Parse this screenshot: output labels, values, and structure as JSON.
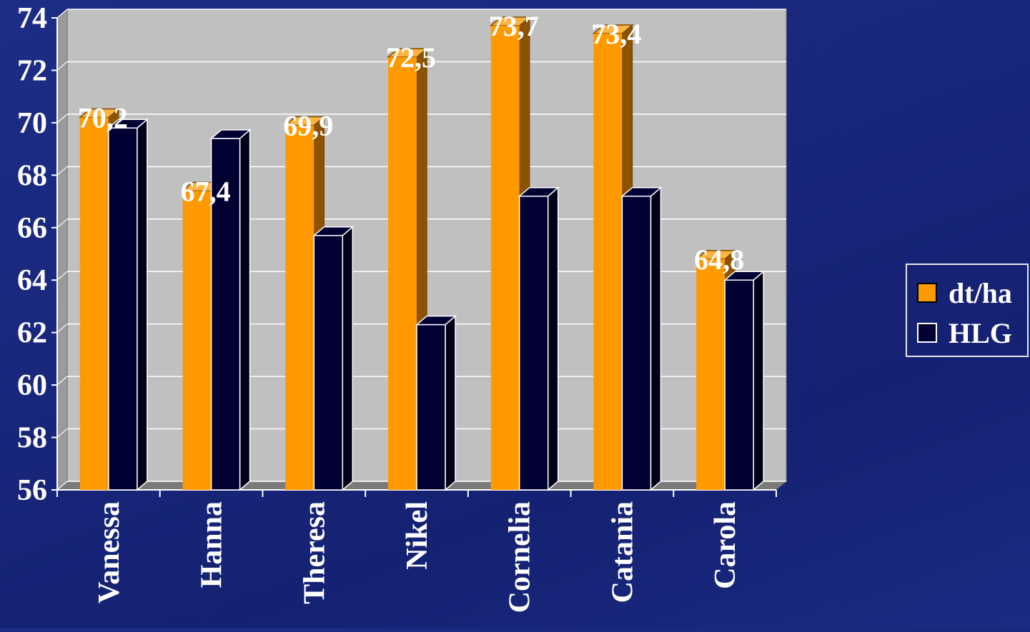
{
  "chart_data": {
    "type": "bar",
    "title": "",
    "xlabel": "",
    "ylabel": "",
    "categories": [
      "Vanessa",
      "Hanna",
      "Theresa",
      "Nikel",
      "Cornelia",
      "Catania",
      "Carola"
    ],
    "series": [
      {
        "name": "dt/ha",
        "values": [
          70.2,
          67.4,
          69.9,
          72.5,
          73.7,
          73.4,
          64.8
        ],
        "data_labels": [
          "70,2",
          "67,4",
          "69,9",
          "72,5",
          "73,7",
          "73,4",
          "64,8"
        ],
        "color": "#ff9900"
      },
      {
        "name": "HLG",
        "values": [
          69.8,
          69.4,
          65.7,
          62.3,
          67.2,
          67.2,
          64.0
        ],
        "color": "#000033"
      }
    ],
    "ylim": [
      56,
      74
    ],
    "yticks": [
      56,
      58,
      60,
      62,
      64,
      66,
      68,
      70,
      72,
      74
    ],
    "grid": true,
    "legend_position": "right",
    "plot_background": "#c0c0c0",
    "background_color": "#1b2a80"
  }
}
